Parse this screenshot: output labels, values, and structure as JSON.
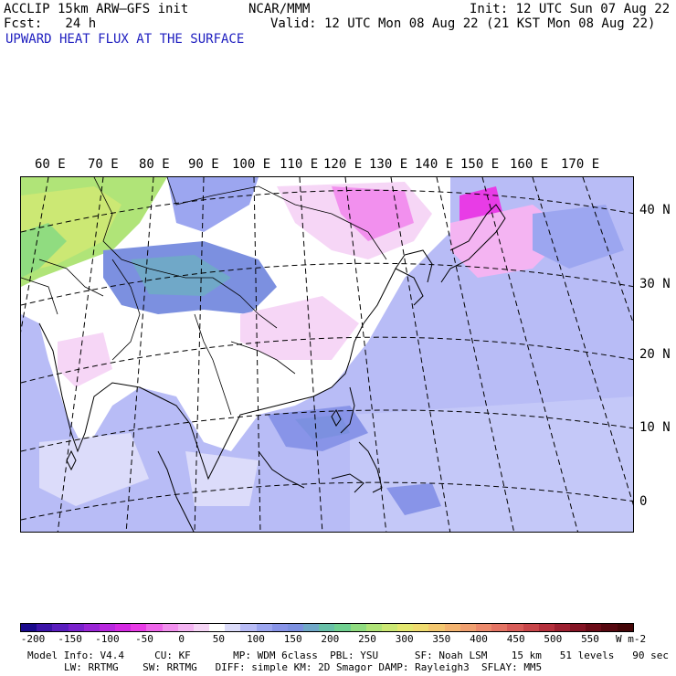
{
  "header": {
    "line1_left": "ACCLIP 15km ARW–GFS init",
    "line1_center": "NCAR/MMM",
    "line1_right": "Init: 12 UTC Sun 07 Aug 22",
    "line2_left": "Fcst:   24 h",
    "line2_right": "Valid: 12 UTC Mon 08 Aug 22 (21 KST Mon 08 Aug 22)",
    "field_title": "UPWARD HEAT FLUX AT THE SURFACE"
  },
  "map": {
    "lon_labels": [
      "60 E",
      "70 E",
      "80 E",
      "90 E",
      "100 E",
      "110 E",
      "120 E",
      "130 E",
      "140 E",
      "150 E",
      "160 E",
      "170 E"
    ],
    "lat_labels": [
      "40 N",
      "30 N",
      "20 N",
      "10 N",
      "0"
    ]
  },
  "colorbar": {
    "labels": [
      "-200",
      "-150",
      "-100",
      "-50",
      "0",
      "50",
      "100",
      "150",
      "200",
      "250",
      "300",
      "350",
      "400",
      "450",
      "500",
      "550"
    ],
    "units": "W m-2",
    "colors": [
      "#1a0a8c",
      "#3c14a8",
      "#5a1ebe",
      "#7a22cc",
      "#9a26d6",
      "#b828de",
      "#d42ae2",
      "#e83ce6",
      "#ee66ea",
      "#f290ee",
      "#f4b4f2",
      "#f6d6f6",
      "#ffffff",
      "#dcdcfa",
      "#b8bcf6",
      "#9ca6f0",
      "#8894e8",
      "#7c90e0",
      "#70a8c8",
      "#68c0a8",
      "#70d090",
      "#90dc80",
      "#b0e478",
      "#cce874",
      "#e4e870",
      "#f0dc70",
      "#f4c870",
      "#f4b470",
      "#f0a070",
      "#ec8a6c",
      "#e47464",
      "#d85c58",
      "#c8464a",
      "#b4303c",
      "#9c2030",
      "#841424",
      "#6c0c18",
      "#560810",
      "#440608"
    ]
  },
  "footer": {
    "line1": "Model Info: V4.4     CU: KF       MP: WDM 6class  PBL: YSU      SF: Noah LSM    15 km   51 levels   90 sec",
    "line2": "LW: RRTMG    SW: RRTMG   DIFF: simple KM: 2D Smagor DAMP: Rayleigh3  SFLAY: MM5"
  }
}
